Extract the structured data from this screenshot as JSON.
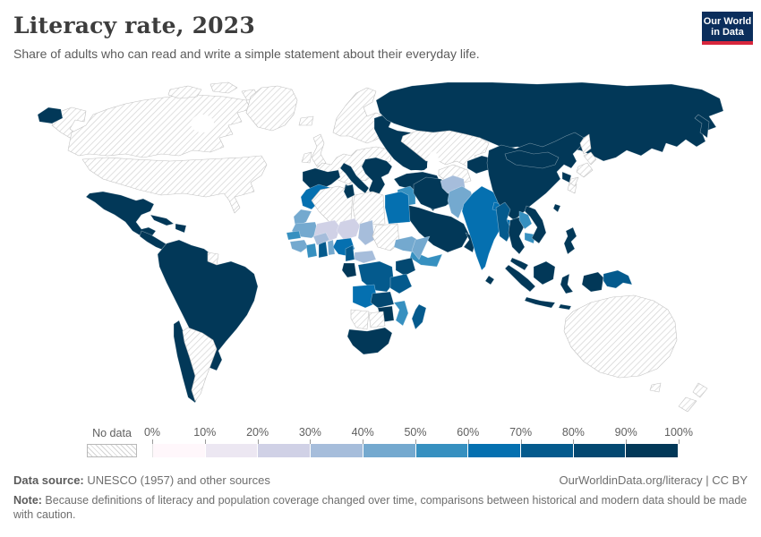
{
  "header": {
    "title": "Literacy rate, 2023",
    "subtitle": "Share of adults who can read and write a simple statement about their everyday life.",
    "logo": {
      "line1": "Our World",
      "line2": "in Data",
      "bg_color": "#0b2e5c",
      "accent_color": "#d7263d"
    }
  },
  "legend": {
    "no_data_label": "No data",
    "ticks": [
      "0%",
      "10%",
      "20%",
      "30%",
      "40%",
      "50%",
      "60%",
      "70%",
      "80%",
      "90%",
      "100%"
    ],
    "colors": [
      "#fff7fb",
      "#ece7f2",
      "#d0d1e6",
      "#a6bddb",
      "#74a9cf",
      "#3690c0",
      "#0570b0",
      "#045a8d",
      "#034871",
      "#023858"
    ]
  },
  "footer": {
    "source_label": "Data source:",
    "source_text": " UNESCO (1957) and other sources",
    "link_text": "OurWorldinData.org/literacy | CC BY",
    "note_label": "Note:",
    "note_text": " Because definitions of literacy and population coverage changed over time, comparisons between historical and modern data should be made with caution."
  },
  "chart_data": {
    "type": "choropleth",
    "title": "Literacy rate, 2023",
    "unit": "%",
    "legend_bins": [
      "0-10",
      "10-20",
      "20-30",
      "30-40",
      "40-50",
      "50-60",
      "60-70",
      "70-80",
      "80-90",
      "90-100"
    ],
    "no_data_style": "diagonal-hatch",
    "regions": [
      {
        "id": "canada",
        "label": "Canada",
        "bin": "no-data"
      },
      {
        "id": "united_states",
        "label": "United States",
        "bin": "no-data"
      },
      {
        "id": "greenland",
        "label": "Greenland",
        "bin": "no-data"
      },
      {
        "id": "mexico",
        "label": "Mexico",
        "bin": "90-100"
      },
      {
        "id": "central_america",
        "label": "Central America",
        "bin": "90-100"
      },
      {
        "id": "cuba",
        "label": "Cuba",
        "bin": "90-100"
      },
      {
        "id": "hispaniola",
        "label": "Hispaniola",
        "bin": "90-100"
      },
      {
        "id": "south_america",
        "label": "South America (Brazil & Andes)",
        "bin": "90-100"
      },
      {
        "id": "chile",
        "label": "Chile",
        "bin": "90-100"
      },
      {
        "id": "argentina",
        "label": "Argentina",
        "bin": "no-data"
      },
      {
        "id": "guyana_suriname",
        "label": "Guyana & Suriname",
        "bin": "no-data"
      },
      {
        "id": "iceland",
        "label": "Iceland",
        "bin": "no-data"
      },
      {
        "id": "united_kingdom",
        "label": "United Kingdom",
        "bin": "no-data"
      },
      {
        "id": "ireland",
        "label": "Ireland",
        "bin": "no-data"
      },
      {
        "id": "scandinavia",
        "label": "Scandinavia",
        "bin": "no-data"
      },
      {
        "id": "europe_west",
        "label": "Western & Central Europe",
        "bin": "no-data"
      },
      {
        "id": "iberia",
        "label": "Spain & Portugal",
        "bin": "90-100"
      },
      {
        "id": "italy",
        "label": "Italy",
        "bin": "90-100"
      },
      {
        "id": "balkans",
        "label": "Balkans & Greece",
        "bin": "90-100"
      },
      {
        "id": "east_europe",
        "label": "Ukraine, Belarus & Baltics",
        "bin": "90-100"
      },
      {
        "id": "russia",
        "label": "Russia",
        "bin": "90-100"
      },
      {
        "id": "kazakhstan",
        "label": "Kazakhstan",
        "bin": "no-data"
      },
      {
        "id": "turkmenistan",
        "label": "Turkmenistan",
        "bin": "no-data"
      },
      {
        "id": "central_asia",
        "label": "Uzbekistan, Kyrgyzstan & Tajikistan",
        "bin": "90-100"
      },
      {
        "id": "turkey",
        "label": "Turkey",
        "bin": "90-100"
      },
      {
        "id": "levant",
        "label": "Levant",
        "bin": "90-100"
      },
      {
        "id": "iraq",
        "label": "Iraq",
        "bin": "50-60"
      },
      {
        "id": "iran",
        "label": "Iran",
        "bin": "90-100"
      },
      {
        "id": "saudi_arabia",
        "label": "Saudi Arabia",
        "bin": "90-100"
      },
      {
        "id": "yemen",
        "label": "Yemen",
        "bin": "50-60"
      },
      {
        "id": "oman",
        "label": "Oman",
        "bin": "90-100"
      },
      {
        "id": "afghanistan",
        "label": "Afghanistan",
        "bin": "30-40"
      },
      {
        "id": "pakistan",
        "label": "Pakistan",
        "bin": "40-50"
      },
      {
        "id": "india",
        "label": "India",
        "bin": "60-70"
      },
      {
        "id": "nepal",
        "label": "Nepal",
        "bin": "60-70"
      },
      {
        "id": "bangladesh",
        "label": "Bangladesh",
        "bin": "60-70"
      },
      {
        "id": "sri_lanka",
        "label": "Sri Lanka",
        "bin": "90-100"
      },
      {
        "id": "china",
        "label": "China",
        "bin": "90-100"
      },
      {
        "id": "mongolia",
        "label": "Mongolia",
        "bin": "90-100"
      },
      {
        "id": "north_korea",
        "label": "North Korea",
        "bin": "90-100"
      },
      {
        "id": "south_korea",
        "label": "South Korea",
        "bin": "no-data"
      },
      {
        "id": "japan",
        "label": "Japan",
        "bin": "no-data"
      },
      {
        "id": "taiwan",
        "label": "Taiwan",
        "bin": "90-100"
      },
      {
        "id": "myanmar",
        "label": "Myanmar",
        "bin": "70-80"
      },
      {
        "id": "thailand",
        "label": "Thailand",
        "bin": "90-100"
      },
      {
        "id": "laos",
        "label": "Laos",
        "bin": "50-60"
      },
      {
        "id": "cambodia",
        "label": "Cambodia",
        "bin": "50-60"
      },
      {
        "id": "vietnam",
        "label": "Vietnam",
        "bin": "90-100"
      },
      {
        "id": "malaysia",
        "label": "Malaysia",
        "bin": "90-100"
      },
      {
        "id": "indonesia",
        "label": "Indonesia",
        "bin": "90-100"
      },
      {
        "id": "philippines",
        "label": "Philippines",
        "bin": "90-100"
      },
      {
        "id": "new_guinea_west",
        "label": "Papua (Indonesia)",
        "bin": "90-100"
      },
      {
        "id": "papua_new_guinea",
        "label": "Papua New Guinea",
        "bin": "70-80"
      },
      {
        "id": "australia",
        "label": "Australia",
        "bin": "no-data"
      },
      {
        "id": "new_zealand",
        "label": "New Zealand",
        "bin": "no-data"
      },
      {
        "id": "morocco",
        "label": "Morocco",
        "bin": "60-70"
      },
      {
        "id": "algeria",
        "label": "Algeria",
        "bin": "no-data"
      },
      {
        "id": "tunisia",
        "label": "Tunisia",
        "bin": "90-100"
      },
      {
        "id": "libya",
        "label": "Libya",
        "bin": "no-data"
      },
      {
        "id": "egypt",
        "label": "Egypt",
        "bin": "60-70"
      },
      {
        "id": "western_sahara",
        "label": "Western Sahara",
        "bin": "40-50"
      },
      {
        "id": "mauritania",
        "label": "Mauritania",
        "bin": "40-50"
      },
      {
        "id": "mali",
        "label": "Mali",
        "bin": "20-30"
      },
      {
        "id": "niger",
        "label": "Niger",
        "bin": "20-30"
      },
      {
        "id": "chad",
        "label": "Chad",
        "bin": "30-40"
      },
      {
        "id": "sudan",
        "label": "Sudan",
        "bin": "no-data"
      },
      {
        "id": "ethiopia",
        "label": "Ethiopia",
        "bin": "40-50"
      },
      {
        "id": "somalia",
        "label": "Somalia",
        "bin": "40-50"
      },
      {
        "id": "senegal",
        "label": "Senegal",
        "bin": "50-60"
      },
      {
        "id": "guinea_region",
        "label": "Guinea region",
        "bin": "40-50"
      },
      {
        "id": "cote_divoire",
        "label": "Côte d'Ivoire",
        "bin": "50-60"
      },
      {
        "id": "ghana",
        "label": "Ghana",
        "bin": "70-80"
      },
      {
        "id": "togo_benin",
        "label": "Togo & Benin",
        "bin": "40-50"
      },
      {
        "id": "burkina_faso",
        "label": "Burkina Faso",
        "bin": "30-40"
      },
      {
        "id": "nigeria",
        "label": "Nigeria",
        "bin": "60-70"
      },
      {
        "id": "cameroon",
        "label": "Cameroon",
        "bin": "70-80"
      },
      {
        "id": "central_african_republic",
        "label": "Central African Republic",
        "bin": "30-40"
      },
      {
        "id": "gabon_congo",
        "label": "Gabon & Congo",
        "bin": "90-100"
      },
      {
        "id": "drc",
        "label": "Democratic Republic of Congo",
        "bin": "70-80"
      },
      {
        "id": "kenya",
        "label": "Kenya",
        "bin": "80-90"
      },
      {
        "id": "tanzania",
        "label": "Tanzania",
        "bin": "70-80"
      },
      {
        "id": "angola",
        "label": "Angola",
        "bin": "60-70"
      },
      {
        "id": "zambia",
        "label": "Zambia",
        "bin": "80-90"
      },
      {
        "id": "mozambique",
        "label": "Mozambique & Malawi",
        "bin": "50-60"
      },
      {
        "id": "zimbabwe",
        "label": "Zimbabwe",
        "bin": "90-100"
      },
      {
        "id": "namibia",
        "label": "Namibia",
        "bin": "no-data"
      },
      {
        "id": "botswana",
        "label": "Botswana",
        "bin": "no-data"
      },
      {
        "id": "south_africa",
        "label": "South Africa",
        "bin": "90-100"
      },
      {
        "id": "madagascar",
        "label": "Madagascar",
        "bin": "70-80"
      }
    ]
  }
}
